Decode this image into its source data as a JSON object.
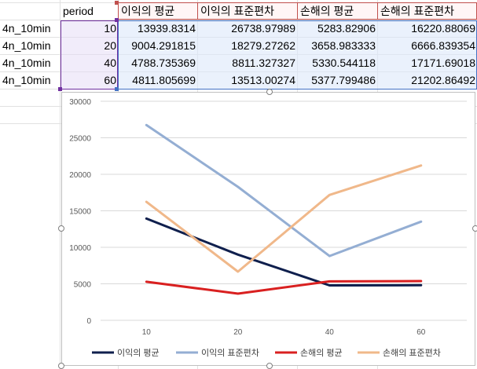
{
  "sheet": {
    "header": {
      "period": "period",
      "profit_mean": "이익의 평균",
      "profit_std": "이익의 표준편차",
      "loss_mean": "손해의 평균",
      "loss_std": "손해의 표준편차"
    },
    "rows": [
      {
        "label": "4n_10min",
        "period": "10",
        "profit_mean": "13939.8314",
        "profit_std": "26738.97989",
        "loss_mean": "5283.82906",
        "loss_std": "16220.88069"
      },
      {
        "label": "4n_10min",
        "period": "20",
        "profit_mean": "9004.291815",
        "profit_std": "18279.27262",
        "loss_mean": "3658.983333",
        "loss_std": "6666.839354"
      },
      {
        "label": "4n_10min",
        "period": "40",
        "profit_mean": "4788.735369",
        "profit_std": "8811.327327",
        "loss_mean": "5330.544118",
        "loss_std": "17171.69018"
      },
      {
        "label": "4n_10min",
        "period": "60",
        "profit_mean": "4811.805699",
        "profit_std": "13513.00274",
        "loss_mean": "5377.799486",
        "loss_std": "21202.86492"
      }
    ]
  },
  "chart_data": {
    "type": "line",
    "title": "",
    "xlabel": "",
    "ylabel": "",
    "categories": [
      "10",
      "20",
      "40",
      "60"
    ],
    "y_ticks": [
      "0",
      "5000",
      "10000",
      "15000",
      "20000",
      "25000",
      "30000"
    ],
    "ylim": [
      0,
      30000
    ],
    "grid": true,
    "legend_position": "bottom",
    "series": [
      {
        "name": "이익의 평균",
        "color": "#0f1f4d",
        "values": [
          13939.8314,
          9004.291815,
          4788.735369,
          4811.805699
        ]
      },
      {
        "name": "이익의 표준편차",
        "color": "#94aed3",
        "values": [
          26738.97989,
          18279.27262,
          8811.327327,
          13513.00274
        ]
      },
      {
        "name": "손해의 평균",
        "color": "#d92020",
        "values": [
          5283.82906,
          3658.983333,
          5330.544118,
          5377.799486
        ]
      },
      {
        "name": "손해의 표준편차",
        "color": "#f0b88a",
        "values": [
          16220.88069,
          6666.839354,
          17171.69018,
          21202.86492
        ]
      }
    ]
  }
}
